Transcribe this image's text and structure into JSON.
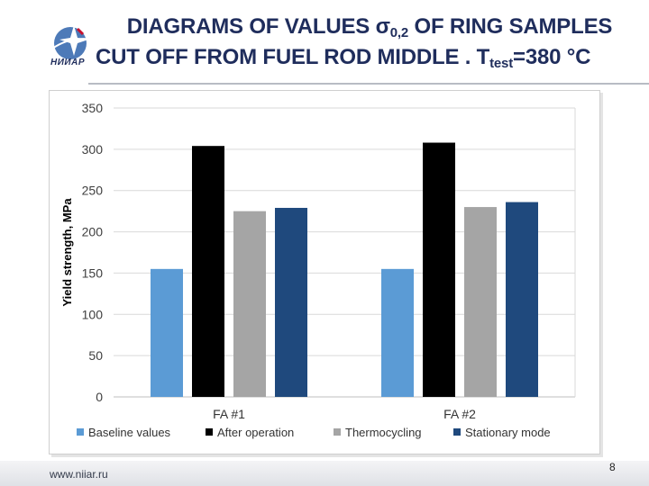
{
  "slide": {
    "title_line1_pre": "DIAGRAMS OF VALUES ",
    "title_sigma": "σ",
    "title_sigma_sub": "0,2",
    "title_line1_post": " OF RING SAMPLES",
    "title_line2_pre": "CUT OFF FROM FUEL ROD MIDDLE . T",
    "title_t_sub": "test",
    "title_line2_post": "=380 °C",
    "logo_text": "НИИАР",
    "footer_url": "www.niiar.ru",
    "page_number": "8"
  },
  "chart_data": {
    "type": "bar",
    "title": "",
    "xlabel": "",
    "ylabel": "Yield strength, MPa",
    "ylim": [
      0,
      350
    ],
    "yticks": [
      0,
      50,
      100,
      150,
      200,
      250,
      300,
      350
    ],
    "categories": [
      "FA #1",
      "FA #2"
    ],
    "series": [
      {
        "name": "Baseline values",
        "color": "#5b9bd5",
        "values": [
          155,
          155
        ]
      },
      {
        "name": "After operation",
        "color": "#000000",
        "values": [
          304,
          308
        ]
      },
      {
        "name": "Thermocycling",
        "color": "#a5a5a5",
        "values": [
          225,
          230
        ]
      },
      {
        "name": "Stationary mode",
        "color": "#1f497d",
        "values": [
          229,
          236
        ]
      }
    ],
    "grid": true,
    "legend_position": "bottom"
  }
}
